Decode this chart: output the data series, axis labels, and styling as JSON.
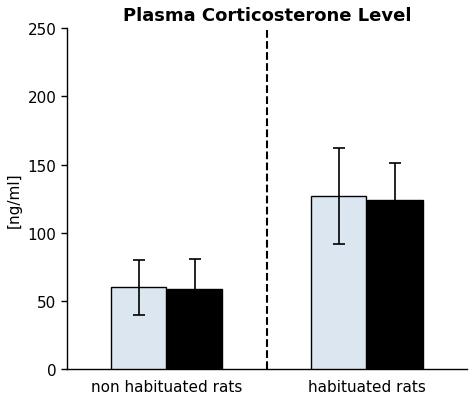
{
  "title": "Plasma Corticosterone Level",
  "ylabel": "[ng/ml]",
  "ylim": [
    0,
    250
  ],
  "yticks": [
    0,
    50,
    100,
    150,
    200,
    250
  ],
  "groups": [
    "non habituated rats",
    "habituated rats"
  ],
  "bar_values": [
    60,
    59,
    127,
    124
  ],
  "bar_errors": [
    20,
    22,
    35,
    27
  ],
  "bar_colors": [
    "#dce6f0",
    "#000000",
    "#dce6f0",
    "#000000"
  ],
  "bar_edgecolors": [
    "#000000",
    "#000000",
    "#000000",
    "#000000"
  ],
  "bar_width": 0.55,
  "group_centers": [
    1.5,
    3.5
  ],
  "dashed_line_x": 2.5,
  "xlim": [
    0.5,
    4.5
  ],
  "background_color": "#ffffff",
  "title_fontsize": 13,
  "label_fontsize": 11,
  "tick_fontsize": 11
}
